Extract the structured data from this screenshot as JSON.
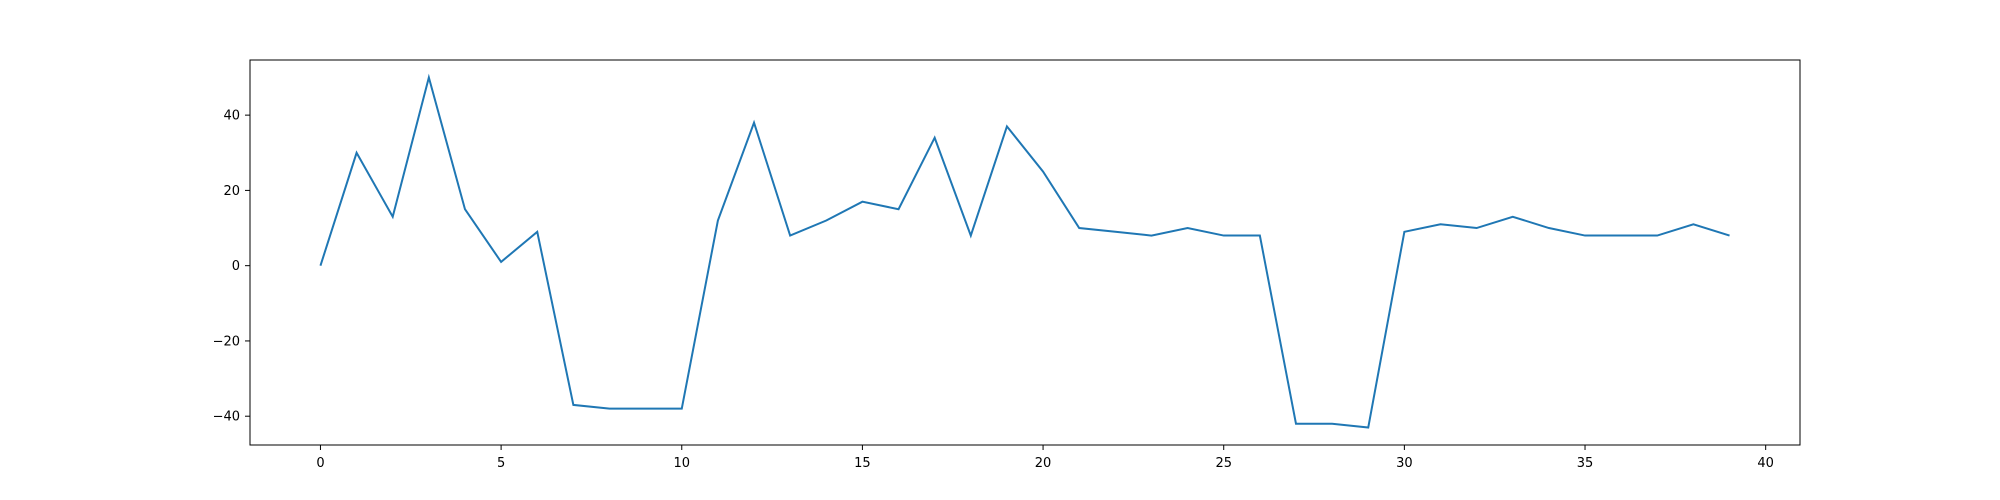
{
  "chart_data": {
    "type": "line",
    "title": "",
    "xlabel": "",
    "ylabel": "",
    "xlim": [
      -1.95,
      40.95
    ],
    "ylim": [
      -47.65,
      54.65
    ],
    "xticks": [
      0,
      5,
      10,
      15,
      20,
      25,
      30,
      35,
      40
    ],
    "yticks": [
      -40,
      -20,
      0,
      20,
      40
    ],
    "xtick_labels": [
      "0",
      "5",
      "10",
      "15",
      "20",
      "25",
      "30",
      "35",
      "40"
    ],
    "ytick_labels": [
      "−40",
      "−20",
      "0",
      "20",
      "40"
    ],
    "grid": false,
    "legend": "none",
    "series": [
      {
        "color": "#1f77b4",
        "x": [
          0,
          1,
          2,
          3,
          4,
          5,
          6,
          7,
          8,
          9,
          10,
          11,
          12,
          13,
          14,
          15,
          16,
          17,
          18,
          19,
          20,
          21,
          22,
          23,
          24,
          25,
          26,
          27,
          28,
          29,
          30,
          31,
          32,
          33,
          34,
          35,
          36,
          37,
          38,
          39
        ],
        "values": [
          0,
          30,
          13,
          50,
          15,
          1,
          9,
          -37,
          -38,
          -38,
          -38,
          12,
          38,
          8,
          12,
          17,
          15,
          34,
          8,
          37,
          25,
          10,
          9,
          8,
          10,
          8,
          8,
          -42,
          -42,
          -43,
          9,
          11,
          10,
          13,
          10,
          8,
          8,
          8,
          11,
          8
        ]
      }
    ]
  }
}
